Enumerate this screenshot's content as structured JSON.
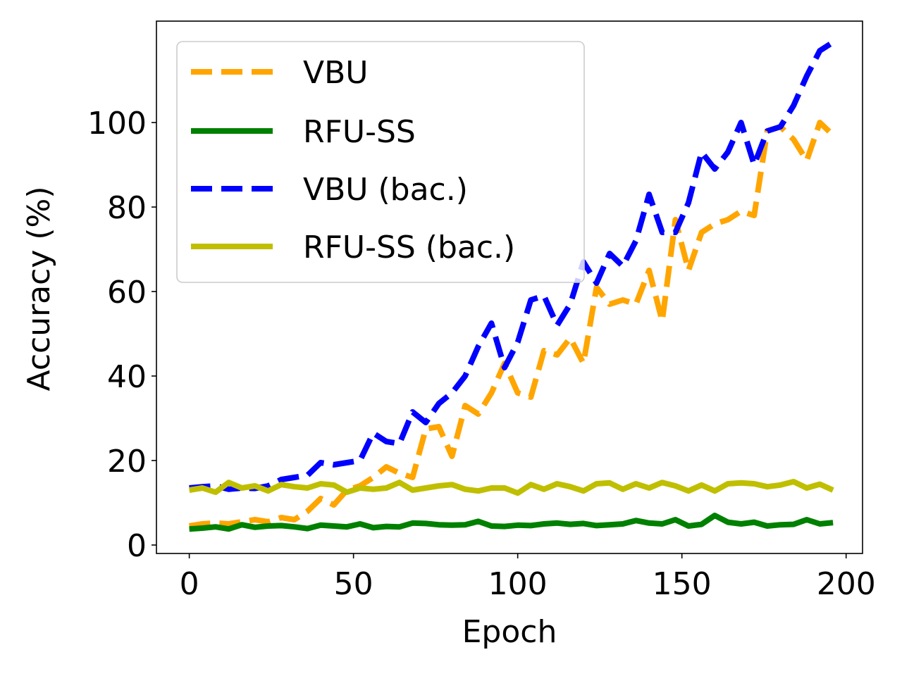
{
  "chart_data": {
    "type": "line",
    "title": "",
    "xlabel": "Epoch",
    "ylabel": "Accuracy (%)",
    "xlim": [
      -10,
      205
    ],
    "ylim": [
      -2,
      124
    ],
    "xticks": [
      0,
      50,
      100,
      150,
      200
    ],
    "yticks": [
      0,
      20,
      40,
      60,
      80,
      100
    ],
    "grid": false,
    "legend_position": "upper-left",
    "x": [
      0,
      4,
      8,
      12,
      16,
      20,
      24,
      28,
      32,
      36,
      40,
      44,
      48,
      52,
      56,
      60,
      64,
      68,
      72,
      76,
      80,
      84,
      88,
      92,
      96,
      100,
      104,
      108,
      112,
      116,
      120,
      124,
      128,
      132,
      136,
      140,
      144,
      148,
      152,
      156,
      160,
      164,
      168,
      172,
      176,
      180,
      184,
      188,
      192,
      196
    ],
    "series": [
      {
        "name": "VBU",
        "color": "#FFA500",
        "dash": true,
        "values": [
          4.5,
          5,
          5.2,
          5,
          5.5,
          6,
          5.5,
          6.5,
          6,
          8,
          11,
          9.5,
          13,
          14,
          16,
          18.5,
          17,
          16,
          27.5,
          28,
          21,
          33,
          31,
          36,
          43,
          36,
          35,
          46,
          45,
          49,
          43,
          61,
          57,
          58,
          57,
          65,
          53,
          77,
          65,
          74,
          76,
          77,
          79,
          78,
          98,
          99,
          96,
          91,
          100,
          97
        ]
      },
      {
        "name": "RFU-SS",
        "color": "#008000",
        "dash": false,
        "values": [
          3.8,
          4,
          4.3,
          3.8,
          4.8,
          4.2,
          4.5,
          4.6,
          4.3,
          3.9,
          4.7,
          4.5,
          4.3,
          5,
          4.1,
          4.4,
          4.3,
          5.2,
          5.1,
          4.8,
          4.7,
          4.8,
          5.6,
          4.5,
          4.4,
          4.7,
          4.6,
          5,
          5.2,
          4.9,
          5.1,
          4.6,
          4.8,
          5,
          5.8,
          5.2,
          5,
          6,
          4.5,
          4.9,
          7,
          5.4,
          5,
          5.4,
          4.5,
          4.8,
          4.9,
          6,
          5,
          5.3
        ]
      },
      {
        "name": "VBU (bac.)",
        "color": "#0000FF",
        "dash": true,
        "values": [
          13.5,
          13.8,
          14,
          13.2,
          13.5,
          13.4,
          14,
          15.5,
          16,
          16.5,
          19.5,
          19,
          19.5,
          20,
          26.5,
          24.5,
          24,
          31.5,
          29,
          33.5,
          36,
          40,
          47,
          52.5,
          42,
          48,
          58,
          59,
          52,
          57,
          67,
          62,
          69,
          66,
          72,
          83,
          74,
          74,
          81,
          93,
          89,
          93,
          100,
          90,
          98,
          99,
          104,
          111,
          117,
          119
        ]
      },
      {
        "name": "RFU-SS (bac.)",
        "color": "#BFBF00",
        "dash": false,
        "values": [
          13,
          13.5,
          12.5,
          14.8,
          13.5,
          14,
          12.8,
          14.3,
          13.8,
          13.5,
          14.5,
          14.2,
          12.5,
          13.5,
          13.2,
          13.5,
          14.8,
          13,
          13.5,
          14,
          14.3,
          13.2,
          12.8,
          13.5,
          13.5,
          12.3,
          14.3,
          13.2,
          14.5,
          13.8,
          12.8,
          14.5,
          14.7,
          13.2,
          14.5,
          13.5,
          14.8,
          14,
          12.8,
          14.2,
          12.8,
          14.5,
          14.7,
          14.5,
          13.8,
          14.2,
          15,
          13.5,
          14.4,
          13
        ]
      }
    ]
  }
}
